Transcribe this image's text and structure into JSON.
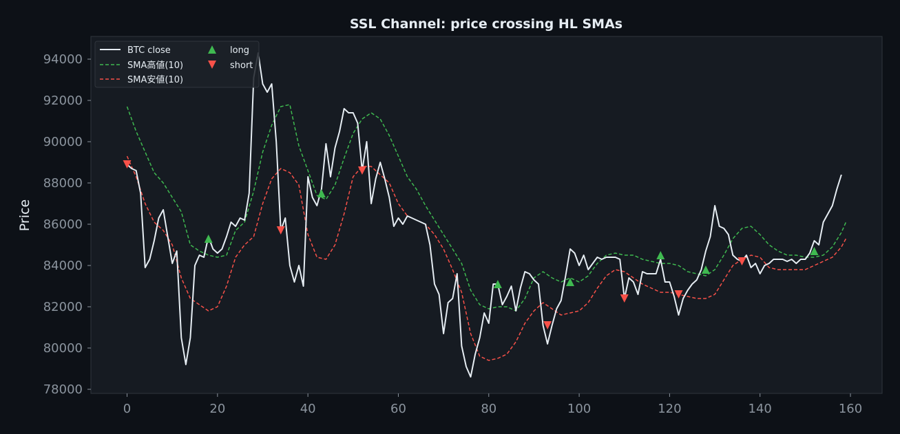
{
  "chart_data": {
    "type": "line",
    "title": "SSL Channel: price crossing HL SMAs",
    "xlabel": "",
    "ylabel": "Price",
    "xlim": [
      -8,
      167
    ],
    "ylim": [
      77800,
      95100
    ],
    "xticks": [
      0,
      20,
      40,
      60,
      80,
      100,
      120,
      140,
      160
    ],
    "yticks": [
      78000,
      80000,
      82000,
      84000,
      86000,
      88000,
      90000,
      92000,
      94000
    ],
    "grid": false,
    "legend_position": "top-left",
    "colors": {
      "background": "#0d1117",
      "plot_background": "#161b22",
      "text": "#e6edf3",
      "tick": "#8b949e",
      "close": "#e6edf3",
      "sma_high": "#3fb950",
      "sma_low": "#f85149",
      "long": "#3fb950",
      "short": "#f85149"
    },
    "series": [
      {
        "name": "BTC close",
        "style": "solid",
        "x": [
          0,
          1,
          2,
          3,
          4,
          5,
          6,
          7,
          8,
          9,
          10,
          11,
          12,
          13,
          14,
          15,
          16,
          17,
          18,
          19,
          20,
          21,
          22,
          23,
          24,
          25,
          26,
          27,
          28,
          29,
          30,
          31,
          32,
          33,
          34,
          35,
          36,
          37,
          38,
          39,
          40,
          41,
          42,
          43,
          44,
          45,
          46,
          47,
          48,
          49,
          50,
          51,
          52,
          53,
          54,
          55,
          56,
          57,
          58,
          59,
          60,
          61,
          62,
          63,
          64,
          65,
          66,
          67,
          68,
          69,
          70,
          71,
          72,
          73,
          74,
          75,
          76,
          77,
          78,
          79,
          80,
          81,
          82,
          83,
          84,
          85,
          86,
          87,
          88,
          89,
          90,
          91,
          92,
          93,
          94,
          95,
          96,
          97,
          98,
          99,
          100,
          101,
          102,
          103,
          104,
          105,
          106,
          107,
          108,
          109,
          110,
          111,
          112,
          113,
          114,
          115,
          116,
          117,
          118,
          119,
          120,
          121,
          122,
          123,
          124,
          125,
          126,
          127,
          128,
          129,
          130,
          131,
          132,
          133,
          134,
          135,
          136,
          137,
          138,
          139,
          140,
          141,
          142,
          143,
          144,
          145,
          146,
          147,
          148,
          149,
          150,
          151,
          152,
          153,
          154,
          155,
          156,
          157,
          158,
          159
        ],
        "y": [
          88900,
          88700,
          88600,
          87500,
          83900,
          84300,
          85200,
          86300,
          86700,
          85400,
          84100,
          84700,
          80500,
          79200,
          80500,
          84000,
          84500,
          84400,
          85400,
          84800,
          84600,
          84800,
          85400,
          86100,
          85900,
          86300,
          86200,
          87500,
          93100,
          94300,
          92800,
          92400,
          92800,
          90000,
          85700,
          86300,
          84000,
          83200,
          84000,
          83000,
          88300,
          87300,
          86900,
          87700,
          89900,
          88300,
          89700,
          90500,
          91600,
          91400,
          91400,
          90900,
          88600,
          90000,
          87000,
          88200,
          89000,
          88200,
          87300,
          85900,
          86300,
          86000,
          86400,
          86300,
          86200,
          86100,
          86000,
          85000,
          83100,
          82600,
          80700,
          82200,
          82400,
          83600,
          80100,
          79100,
          78600,
          79700,
          80500,
          81700,
          81200,
          83100,
          83100,
          82100,
          82500,
          83000,
          81800,
          82900,
          83700,
          83600,
          83300,
          83100,
          81100,
          80200,
          81100,
          81900,
          82300,
          83500,
          84800,
          84600,
          84000,
          84500,
          83800,
          84100,
          84400,
          84300,
          84400,
          84400,
          84400,
          84300,
          82400,
          83400,
          83200,
          82600,
          83700,
          83600,
          83600,
          83600,
          84300,
          83200,
          83200,
          82500,
          81600,
          82400,
          82800,
          83100,
          83300,
          83800,
          84700,
          85400,
          86900,
          85900,
          85800,
          85500,
          84500,
          84300,
          84200,
          84500,
          83900,
          84100,
          83600,
          84000,
          84100,
          84300,
          84300,
          84300,
          84200,
          84300,
          84100,
          84300,
          84300,
          84600,
          85200,
          85000,
          86100,
          86500,
          86900,
          87700,
          88400,
          null
        ]
      },
      {
        "name": "SMA高値(10)",
        "style": "dashed",
        "x": [
          0,
          2,
          4,
          6,
          8,
          10,
          12,
          14,
          16,
          18,
          20,
          22,
          24,
          26,
          28,
          30,
          32,
          34,
          36,
          38,
          40,
          42,
          44,
          46,
          48,
          50,
          52,
          54,
          56,
          58,
          60,
          62,
          64,
          66,
          68,
          70,
          72,
          74,
          76,
          78,
          80,
          82,
          84,
          86,
          88,
          90,
          92,
          94,
          96,
          98,
          100,
          102,
          104,
          106,
          108,
          110,
          112,
          114,
          116,
          118,
          120,
          122,
          124,
          126,
          128,
          130,
          132,
          134,
          136,
          138,
          140,
          142,
          144,
          146,
          148,
          150,
          152,
          154,
          156,
          158,
          159
        ],
        "y": [
          91700,
          90500,
          89500,
          88500,
          88000,
          87300,
          86600,
          85000,
          84700,
          84500,
          84400,
          84500,
          85700,
          86100,
          87600,
          89500,
          90800,
          91700,
          91800,
          89800,
          88600,
          87400,
          87200,
          87900,
          89200,
          90400,
          91100,
          91400,
          91100,
          90300,
          89300,
          88300,
          87700,
          86900,
          86200,
          85500,
          84800,
          84100,
          82800,
          82100,
          81900,
          82000,
          82000,
          81800,
          82400,
          83400,
          83700,
          83400,
          83200,
          83400,
          83200,
          83500,
          84100,
          84500,
          84600,
          84500,
          84500,
          84300,
          84200,
          84100,
          84100,
          84000,
          83700,
          83600,
          83500,
          83800,
          84500,
          85300,
          85800,
          85900,
          85500,
          85000,
          84700,
          84500,
          84500,
          84400,
          84400,
          84500,
          84900,
          85600,
          86100
        ]
      },
      {
        "name": "SMA安値(10)",
        "style": "dashed",
        "x": [
          0,
          2,
          4,
          6,
          8,
          10,
          12,
          14,
          16,
          18,
          20,
          22,
          24,
          26,
          28,
          30,
          32,
          34,
          36,
          38,
          40,
          42,
          44,
          46,
          48,
          50,
          52,
          54,
          56,
          58,
          60,
          62,
          64,
          66,
          68,
          70,
          72,
          74,
          76,
          78,
          80,
          82,
          84,
          86,
          88,
          90,
          92,
          94,
          96,
          98,
          100,
          102,
          104,
          106,
          108,
          110,
          112,
          114,
          116,
          118,
          120,
          122,
          124,
          126,
          128,
          130,
          132,
          134,
          136,
          138,
          140,
          142,
          144,
          146,
          148,
          150,
          152,
          154,
          156,
          158,
          159
        ],
        "y": [
          89300,
          88300,
          87000,
          86100,
          85700,
          85000,
          83400,
          82400,
          82100,
          81800,
          82000,
          83000,
          84400,
          85000,
          85400,
          87000,
          88200,
          88700,
          88500,
          87900,
          85500,
          84400,
          84300,
          85000,
          86500,
          88300,
          88800,
          88800,
          88400,
          88000,
          87000,
          86400,
          86200,
          86000,
          85500,
          84800,
          83800,
          82700,
          80700,
          79600,
          79400,
          79500,
          79700,
          80300,
          81200,
          81800,
          82200,
          81900,
          81600,
          81700,
          81800,
          82200,
          82900,
          83500,
          83800,
          83700,
          83400,
          83100,
          82900,
          82700,
          82700,
          82600,
          82500,
          82400,
          82400,
          82600,
          83300,
          84000,
          84300,
          84500,
          84400,
          83900,
          83800,
          83800,
          83800,
          83800,
          84000,
          84200,
          84400,
          84900,
          85300
        ]
      }
    ],
    "markers": {
      "long": {
        "name": "long",
        "symbol": "triangle-up",
        "points": [
          [
            18,
            85300
          ],
          [
            43,
            87500
          ],
          [
            82,
            83100
          ],
          [
            98,
            83200
          ],
          [
            118,
            84500
          ],
          [
            128,
            83800
          ],
          [
            152,
            84700
          ]
        ]
      },
      "short": {
        "name": "short",
        "symbol": "triangle-down",
        "points": [
          [
            0,
            88900
          ],
          [
            34,
            85700
          ],
          [
            52,
            88600
          ],
          [
            93,
            81100
          ],
          [
            110,
            82400
          ],
          [
            122,
            82600
          ],
          [
            136,
            84200
          ]
        ]
      }
    }
  }
}
